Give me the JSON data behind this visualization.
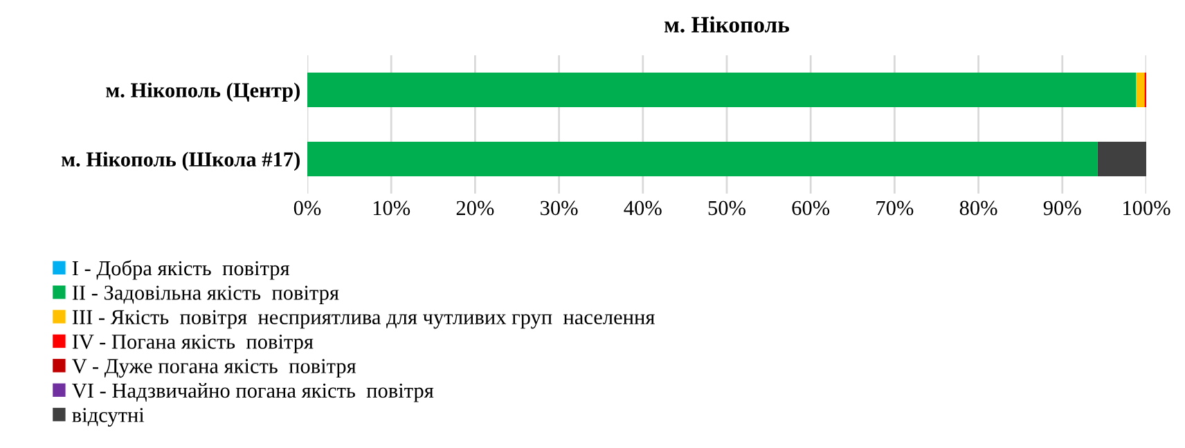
{
  "chart_data": {
    "type": "bar",
    "title": "м. Нікополь",
    "orientation": "horizontal",
    "stacked": true,
    "categories": [
      "м. Нікополь (Центр)",
      "м. Нікополь (Школа #17)"
    ],
    "series": [
      {
        "name": "I - Добра якість  повітря",
        "color": "#00b0f0",
        "values": [
          0,
          0
        ]
      },
      {
        "name": "II - Задовільна якість  повітря",
        "color": "#00b050",
        "values": [
          98.8,
          94.2
        ]
      },
      {
        "name": "III - Якість  повітря  несприятлива для чутливих груп  населення",
        "color": "#ffc000",
        "values": [
          1.0,
          0
        ]
      },
      {
        "name": "IV - Погана якість  повітря",
        "color": "#ff0000",
        "values": [
          0.2,
          0
        ]
      },
      {
        "name": "V - Дуже погана якість  повітря",
        "color": "#c00000",
        "values": [
          0,
          0
        ]
      },
      {
        "name": "VI - Надзвичайно погана якість  повітря",
        "color": "#7030a0",
        "values": [
          0,
          0
        ]
      },
      {
        "name": "відсутні",
        "color": "#404040",
        "values": [
          0,
          5.8
        ]
      }
    ],
    "xlim": [
      0,
      100
    ],
    "xticks": [
      {
        "value": 0,
        "label": "0%"
      },
      {
        "value": 10,
        "label": "10%"
      },
      {
        "value": 20,
        "label": "20%"
      },
      {
        "value": 30,
        "label": "30%"
      },
      {
        "value": 40,
        "label": "40%"
      },
      {
        "value": 50,
        "label": "50%"
      },
      {
        "value": 60,
        "label": "60%"
      },
      {
        "value": 70,
        "label": "70%"
      },
      {
        "value": 80,
        "label": "80%"
      },
      {
        "value": 90,
        "label": "90%"
      },
      {
        "value": 100,
        "label": "100%"
      }
    ],
    "grid": "x",
    "legend": "bottom left"
  }
}
